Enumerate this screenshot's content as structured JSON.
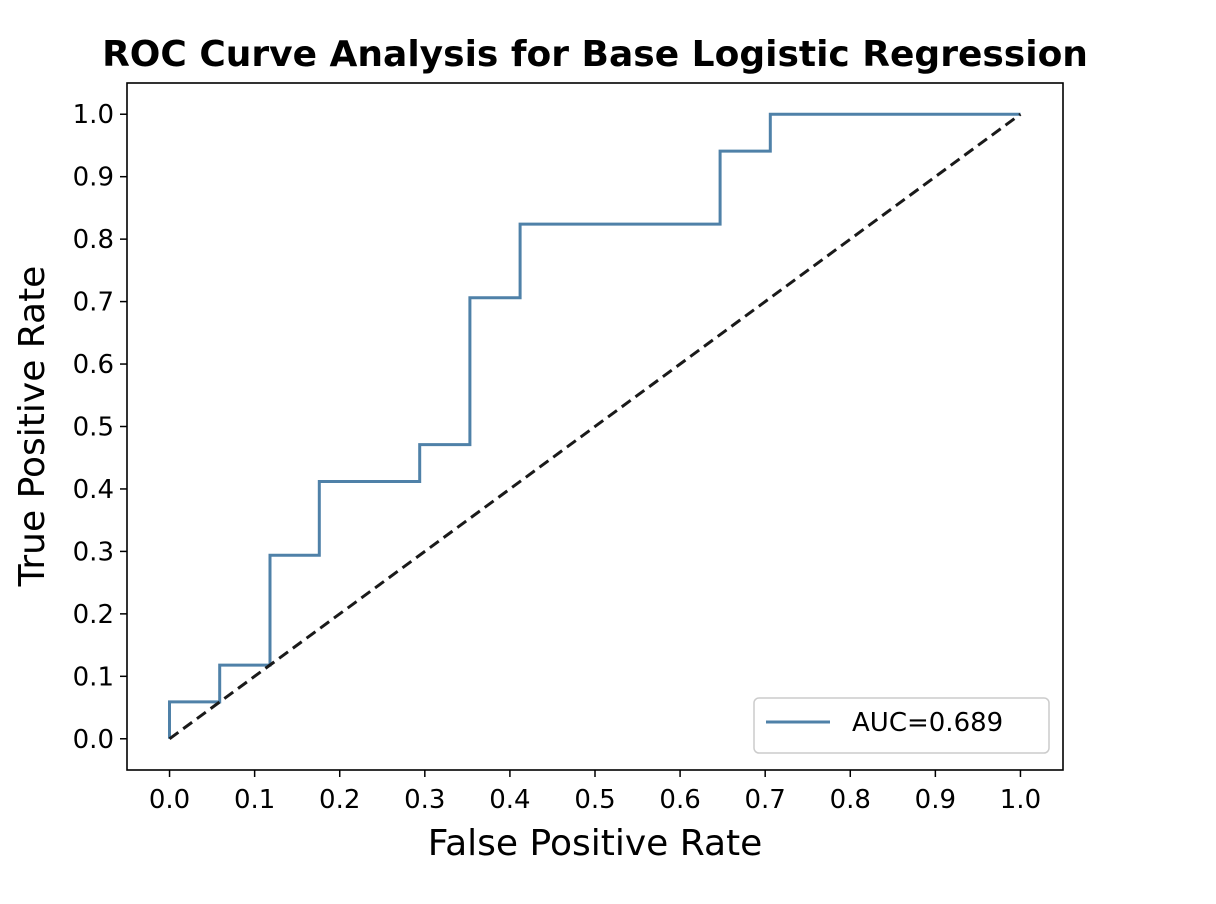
{
  "chart_data": {
    "type": "line",
    "title": "ROC Curve Analysis for Base Logistic Regression",
    "xlabel": "False Positive Rate",
    "ylabel": "True Positive Rate",
    "xlim": [
      -0.05,
      1.05
    ],
    "ylim": [
      -0.05,
      1.05
    ],
    "x_ticks": [
      0.0,
      0.1,
      0.2,
      0.3,
      0.4,
      0.5,
      0.6,
      0.7,
      0.8,
      0.9,
      1.0
    ],
    "y_ticks": [
      0.0,
      0.1,
      0.2,
      0.3,
      0.4,
      0.5,
      0.6,
      0.7,
      0.8,
      0.9,
      1.0
    ],
    "x_tick_labels": [
      "0.0",
      "0.1",
      "0.2",
      "0.3",
      "0.4",
      "0.5",
      "0.6",
      "0.7",
      "0.8",
      "0.9",
      "1.0"
    ],
    "y_tick_labels": [
      "0.0",
      "0.1",
      "0.2",
      "0.3",
      "0.4",
      "0.5",
      "0.6",
      "0.7",
      "0.8",
      "0.9",
      "1.0"
    ],
    "grid": false,
    "legend_position": "lower-right",
    "series": [
      {
        "name": "AUC=0.689",
        "color": "#4f81a8",
        "style": "solid",
        "x": [
          0.0,
          0.0,
          0.059,
          0.059,
          0.118,
          0.118,
          0.176,
          0.176,
          0.294,
          0.294,
          0.353,
          0.353,
          0.412,
          0.412,
          0.647,
          0.647,
          0.706,
          0.706,
          1.0
        ],
        "y": [
          0.0,
          0.059,
          0.059,
          0.118,
          0.118,
          0.294,
          0.294,
          0.412,
          0.412,
          0.471,
          0.471,
          0.706,
          0.706,
          0.824,
          0.824,
          0.941,
          0.941,
          1.0,
          1.0
        ]
      },
      {
        "color": "#1a1a1a",
        "style": "dashed",
        "x": [
          0.0,
          1.0
        ],
        "y": [
          0.0,
          1.0
        ]
      }
    ]
  }
}
